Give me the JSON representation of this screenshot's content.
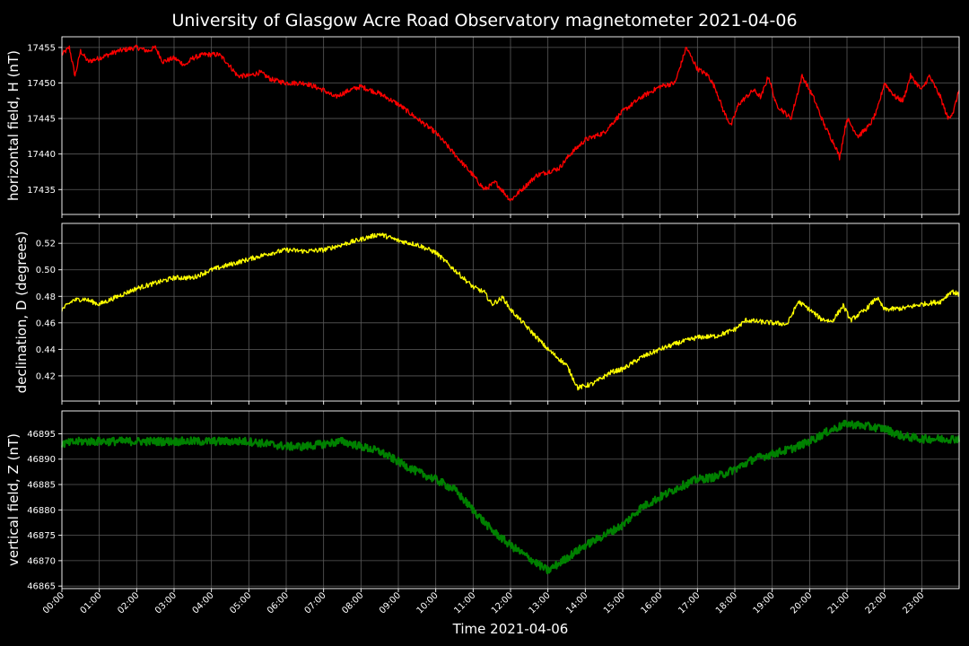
{
  "chart_data": {
    "title": "University of Glasgow Acre Road Observatory magnetometer 2021-04-06",
    "xlabel": "Time 2021-04-06",
    "x_ticks": [
      "00:00",
      "01:00",
      "02:00",
      "03:00",
      "04:00",
      "05:00",
      "06:00",
      "07:00",
      "08:00",
      "09:00",
      "10:00",
      "11:00",
      "12:00",
      "13:00",
      "14:00",
      "15:00",
      "16:00",
      "17:00",
      "18:00",
      "19:00",
      "20:00",
      "21:00",
      "22:00",
      "23:00"
    ],
    "xlim_hours": [
      0,
      24
    ],
    "grid": true,
    "panels": [
      {
        "type": "line",
        "ylabel": "horizontal field, H (nT)",
        "color": "#ff0000",
        "ylim": [
          17431.5,
          17456.5
        ],
        "y_ticks": [
          17435,
          17440,
          17445,
          17450,
          17455
        ],
        "noise": 0.35,
        "points": [
          [
            0,
            17454
          ],
          [
            0.2,
            17455
          ],
          [
            0.35,
            17451
          ],
          [
            0.5,
            17454.5
          ],
          [
            0.7,
            17453
          ],
          [
            1.0,
            17453.5
          ],
          [
            1.5,
            17454.5
          ],
          [
            2.0,
            17455
          ],
          [
            2.3,
            17454.5
          ],
          [
            2.5,
            17455
          ],
          [
            2.7,
            17453
          ],
          [
            3.0,
            17453.5
          ],
          [
            3.3,
            17452.5
          ],
          [
            3.5,
            17453.5
          ],
          [
            3.8,
            17454
          ],
          [
            4.2,
            17454
          ],
          [
            4.4,
            17453
          ],
          [
            4.7,
            17451
          ],
          [
            5.0,
            17451
          ],
          [
            5.3,
            17451.5
          ],
          [
            5.6,
            17450.5
          ],
          [
            6.0,
            17450
          ],
          [
            6.5,
            17450
          ],
          [
            7.0,
            17449
          ],
          [
            7.3,
            17448
          ],
          [
            7.7,
            17449
          ],
          [
            8.0,
            17449.5
          ],
          [
            8.5,
            17448.5
          ],
          [
            9.0,
            17447
          ],
          [
            9.5,
            17445
          ],
          [
            10.0,
            17443
          ],
          [
            10.5,
            17440
          ],
          [
            11.0,
            17437
          ],
          [
            11.3,
            17435
          ],
          [
            11.6,
            17436
          ],
          [
            12.0,
            17433.5
          ],
          [
            12.3,
            17435
          ],
          [
            12.7,
            17437
          ],
          [
            13.0,
            17437.5
          ],
          [
            13.3,
            17438
          ],
          [
            13.6,
            17440
          ],
          [
            14.0,
            17442
          ],
          [
            14.5,
            17443
          ],
          [
            15.0,
            17446
          ],
          [
            15.5,
            17448
          ],
          [
            16.0,
            17449.5
          ],
          [
            16.4,
            17450
          ],
          [
            16.7,
            17455
          ],
          [
            17.0,
            17452
          ],
          [
            17.3,
            17451
          ],
          [
            17.5,
            17449
          ],
          [
            17.7,
            17446
          ],
          [
            17.9,
            17444
          ],
          [
            18.1,
            17447
          ],
          [
            18.3,
            17448
          ],
          [
            18.5,
            17449
          ],
          [
            18.7,
            17448
          ],
          [
            18.9,
            17451
          ],
          [
            19.1,
            17447
          ],
          [
            19.3,
            17446
          ],
          [
            19.5,
            17445
          ],
          [
            19.8,
            17451
          ],
          [
            20.1,
            17448
          ],
          [
            20.4,
            17444
          ],
          [
            20.7,
            17441
          ],
          [
            20.8,
            17439.5
          ],
          [
            21.0,
            17445
          ],
          [
            21.3,
            17442.5
          ],
          [
            21.6,
            17444
          ],
          [
            21.8,
            17446
          ],
          [
            22.0,
            17450
          ],
          [
            22.3,
            17448
          ],
          [
            22.5,
            17447.5
          ],
          [
            22.7,
            17451
          ],
          [
            23.0,
            17449
          ],
          [
            23.2,
            17451
          ],
          [
            23.5,
            17448
          ],
          [
            23.7,
            17445
          ],
          [
            23.85,
            17446
          ],
          [
            24.0,
            17449
          ]
        ]
      },
      {
        "type": "line",
        "ylabel": "declination, D (degrees)",
        "color": "#ffff00",
        "ylim": [
          0.401,
          0.535
        ],
        "y_ticks": [
          0.42,
          0.44,
          0.46,
          0.48,
          0.5,
          0.52
        ],
        "noise": 0.0018,
        "points": [
          [
            0,
            0.47
          ],
          [
            0.3,
            0.477
          ],
          [
            0.6,
            0.478
          ],
          [
            1.0,
            0.474
          ],
          [
            1.5,
            0.48
          ],
          [
            2.0,
            0.486
          ],
          [
            2.5,
            0.49
          ],
          [
            3.0,
            0.494
          ],
          [
            3.5,
            0.494
          ],
          [
            4.0,
            0.5
          ],
          [
            4.5,
            0.504
          ],
          [
            5.0,
            0.508
          ],
          [
            5.5,
            0.512
          ],
          [
            6.0,
            0.515
          ],
          [
            6.5,
            0.514
          ],
          [
            7.0,
            0.515
          ],
          [
            7.5,
            0.519
          ],
          [
            8.0,
            0.523
          ],
          [
            8.5,
            0.527
          ],
          [
            9.0,
            0.522
          ],
          [
            9.5,
            0.519
          ],
          [
            10.0,
            0.513
          ],
          [
            10.5,
            0.5
          ],
          [
            11.0,
            0.487
          ],
          [
            11.3,
            0.483
          ],
          [
            11.5,
            0.474
          ],
          [
            11.8,
            0.479
          ],
          [
            12.0,
            0.47
          ],
          [
            12.5,
            0.455
          ],
          [
            13.0,
            0.44
          ],
          [
            13.5,
            0.428
          ],
          [
            13.8,
            0.411
          ],
          [
            14.2,
            0.414
          ],
          [
            14.7,
            0.423
          ],
          [
            15.0,
            0.425
          ],
          [
            15.5,
            0.434
          ],
          [
            16.0,
            0.44
          ],
          [
            16.5,
            0.445
          ],
          [
            17.0,
            0.449
          ],
          [
            17.5,
            0.45
          ],
          [
            18.0,
            0.455
          ],
          [
            18.3,
            0.462
          ],
          [
            18.6,
            0.461
          ],
          [
            19.0,
            0.46
          ],
          [
            19.4,
            0.459
          ],
          [
            19.7,
            0.476
          ],
          [
            20.0,
            0.47
          ],
          [
            20.3,
            0.463
          ],
          [
            20.6,
            0.461
          ],
          [
            20.9,
            0.473
          ],
          [
            21.1,
            0.462
          ],
          [
            21.5,
            0.47
          ],
          [
            21.8,
            0.479
          ],
          [
            22.0,
            0.47
          ],
          [
            22.5,
            0.471
          ],
          [
            23.0,
            0.474
          ],
          [
            23.5,
            0.476
          ],
          [
            23.8,
            0.484
          ],
          [
            24.0,
            0.481
          ]
        ]
      },
      {
        "type": "line",
        "ylabel": "vertical field, Z (nT)",
        "color": "#008000",
        "ylim": [
          46864.5,
          46899.5
        ],
        "y_ticks": [
          46865,
          46870,
          46875,
          46880,
          46885,
          46890,
          46895
        ],
        "noise": 0.8,
        "points": [
          [
            0,
            46893
          ],
          [
            0.5,
            46893.5
          ],
          [
            1.0,
            46893.5
          ],
          [
            2.0,
            46893.5
          ],
          [
            3.0,
            46893.5
          ],
          [
            4.0,
            46893.5
          ],
          [
            5.0,
            46893.5
          ],
          [
            5.5,
            46893
          ],
          [
            6.0,
            46892.5
          ],
          [
            6.5,
            46892.5
          ],
          [
            7.0,
            46893
          ],
          [
            7.5,
            46893.5
          ],
          [
            8.0,
            46892.5
          ],
          [
            8.5,
            46891.5
          ],
          [
            9.0,
            46889.5
          ],
          [
            9.5,
            46887.5
          ],
          [
            10.0,
            46886
          ],
          [
            10.5,
            46884
          ],
          [
            11.0,
            46880
          ],
          [
            11.5,
            46876
          ],
          [
            12.0,
            46873
          ],
          [
            12.5,
            46870.5
          ],
          [
            13.0,
            46868
          ],
          [
            13.5,
            46870.5
          ],
          [
            14.0,
            46873
          ],
          [
            14.5,
            46875
          ],
          [
            15.0,
            46877
          ],
          [
            15.5,
            46880.5
          ],
          [
            16.0,
            46882.5
          ],
          [
            16.5,
            46884.5
          ],
          [
            17.0,
            46886
          ],
          [
            17.5,
            46886.5
          ],
          [
            18.0,
            46888
          ],
          [
            18.5,
            46890
          ],
          [
            19.0,
            46891
          ],
          [
            19.5,
            46892
          ],
          [
            20.0,
            46893.5
          ],
          [
            20.5,
            46895.5
          ],
          [
            21.0,
            46897
          ],
          [
            21.5,
            46896.5
          ],
          [
            22.0,
            46896
          ],
          [
            22.5,
            46894.5
          ],
          [
            23.0,
            46894
          ],
          [
            23.5,
            46894
          ],
          [
            24.0,
            46894
          ]
        ]
      }
    ]
  }
}
